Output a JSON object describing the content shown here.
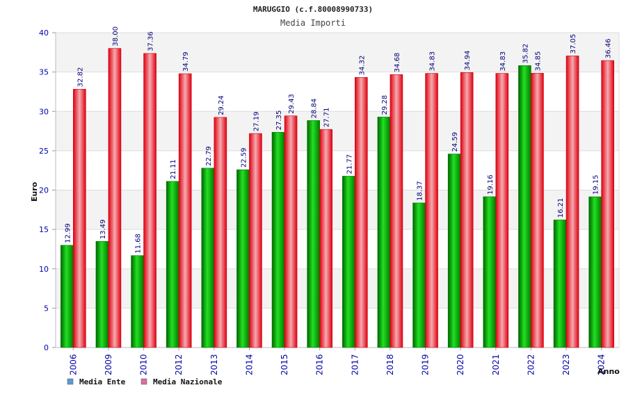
{
  "chart_data": {
    "type": "bar",
    "title": "MARUGGIO (c.f.80008990733)",
    "subtitle": "Media Importi",
    "ylabel": "Euro",
    "xlabel": "Anno",
    "ylim": [
      0,
      40
    ],
    "yticks": [
      0,
      5,
      10,
      15,
      20,
      25,
      30,
      35,
      40
    ],
    "grid": true,
    "legend_position": "bottom-left",
    "categories": [
      "2006",
      "2009",
      "2010",
      "2012",
      "2013",
      "2014",
      "2015",
      "2016",
      "2017",
      "2018",
      "2019",
      "2020",
      "2021",
      "2022",
      "2023",
      "2024"
    ],
    "series": [
      {
        "name": "Media Ente",
        "color": "#00a000",
        "legend_color": "#5b9bd5",
        "values": [
          12.99,
          13.49,
          11.68,
          21.11,
          22.79,
          22.59,
          27.35,
          28.84,
          21.77,
          29.28,
          18.37,
          24.59,
          19.16,
          35.82,
          16.21,
          19.15
        ],
        "labels": [
          "12.99",
          "13.49",
          "11.68",
          "21.11",
          "22.79",
          "22.59",
          "27.35",
          "28.84",
          "21.77",
          "29.28",
          "18.37",
          "24.59",
          "19.16",
          "35.82",
          "16.21",
          "19.15"
        ]
      },
      {
        "name": "Media Nazionale",
        "color": "#e8101a",
        "legend_color": "#d96fa0",
        "values": [
          32.82,
          38.0,
          37.36,
          34.79,
          29.24,
          27.19,
          29.43,
          27.71,
          34.32,
          34.68,
          34.83,
          34.94,
          34.83,
          34.85,
          37.05,
          36.46
        ],
        "labels": [
          "32.82",
          "38.00",
          "37.36",
          "34.79",
          "29.24",
          "27.19",
          "29.43",
          "27.71",
          "34.32",
          "34.68",
          "34.83",
          "34.94",
          "34.83",
          "34.85",
          "37.05",
          "36.46"
        ]
      }
    ]
  }
}
